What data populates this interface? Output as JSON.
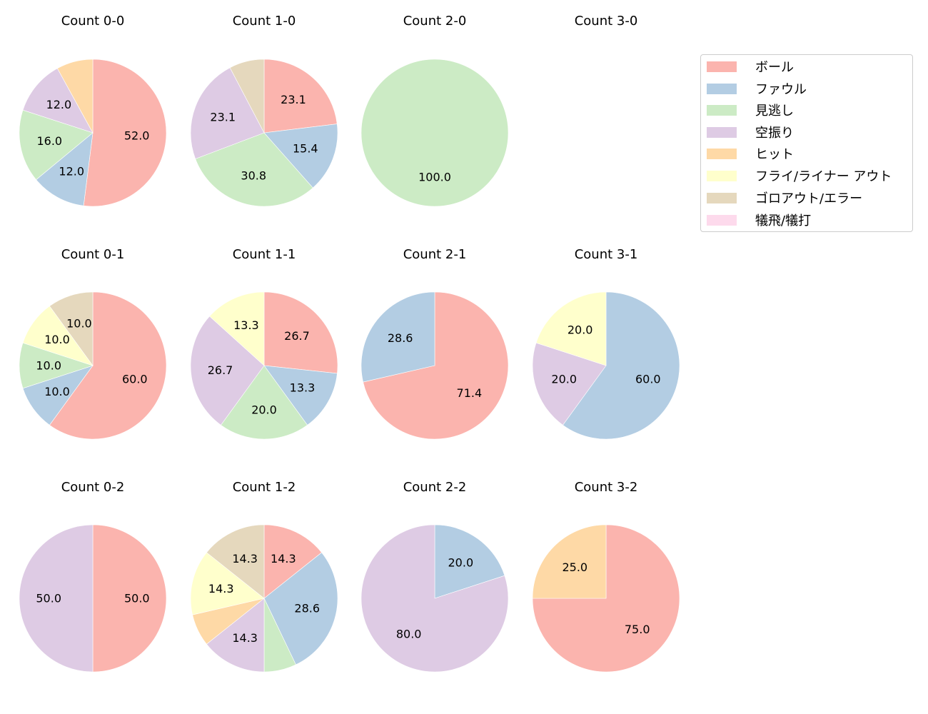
{
  "chart_data": {
    "type": "pie",
    "categories": [
      "ボール",
      "ファウル",
      "見逃し",
      "空振り",
      "ヒット",
      "フライ/ライナー アウト",
      "ゴロアウト/エラー",
      "犠飛/犠打"
    ],
    "colors": [
      "#fbb4ae",
      "#b3cde3",
      "#ccebc5",
      "#decbe4",
      "#fed9a6",
      "#ffffcc",
      "#e5d8bd",
      "#fddaec"
    ],
    "legend_position": "upper right",
    "charts": [
      {
        "title": "Count 0-0",
        "row": 0,
        "col": 0,
        "values": [
          52.0,
          12.0,
          16.0,
          12.0,
          8.0,
          0,
          0,
          0
        ],
        "labels": [
          "52.0",
          "12.0",
          "16.0",
          "12.0",
          "",
          "",
          "",
          ""
        ]
      },
      {
        "title": "Count 1-0",
        "row": 0,
        "col": 1,
        "values": [
          23.1,
          15.4,
          30.8,
          23.1,
          0,
          0,
          7.7,
          0
        ],
        "labels": [
          "23.1",
          "15.4",
          "30.8",
          "23.1",
          "",
          "",
          "",
          ""
        ]
      },
      {
        "title": "Count 2-0",
        "row": 0,
        "col": 2,
        "values": [
          0,
          0,
          100.0,
          0,
          0,
          0,
          0,
          0
        ],
        "labels": [
          "",
          "",
          "100.0",
          "",
          "",
          "",
          "",
          ""
        ]
      },
      {
        "title": "Count 3-0",
        "row": 0,
        "col": 3,
        "values": [
          0,
          0,
          0,
          0,
          0,
          0,
          0,
          0
        ],
        "labels": [
          "",
          "",
          "",
          "",
          "",
          "",
          "",
          ""
        ]
      },
      {
        "title": "Count 0-1",
        "row": 1,
        "col": 0,
        "values": [
          60.0,
          10.0,
          10.0,
          0,
          0,
          10.0,
          10.0,
          0
        ],
        "labels": [
          "60.0",
          "10.0",
          "10.0",
          "",
          "",
          "10.0",
          "10.0",
          ""
        ]
      },
      {
        "title": "Count 1-1",
        "row": 1,
        "col": 1,
        "values": [
          26.7,
          13.3,
          20.0,
          26.7,
          0,
          13.3,
          0,
          0
        ],
        "labels": [
          "26.7",
          "13.3",
          "20.0",
          "26.7",
          "",
          "13.3",
          "",
          ""
        ]
      },
      {
        "title": "Count 2-1",
        "row": 1,
        "col": 2,
        "values": [
          71.4,
          28.6,
          0,
          0,
          0,
          0,
          0,
          0
        ],
        "labels": [
          "71.4",
          "28.6",
          "",
          "",
          "",
          "",
          "",
          ""
        ]
      },
      {
        "title": "Count 3-1",
        "row": 1,
        "col": 3,
        "values": [
          0,
          60.0,
          0,
          20.0,
          0,
          20.0,
          0,
          0
        ],
        "labels": [
          "",
          "60.0",
          "",
          "20.0",
          "",
          "20.0",
          "",
          ""
        ]
      },
      {
        "title": "Count 0-2",
        "row": 2,
        "col": 0,
        "values": [
          50.0,
          0,
          0,
          50.0,
          0,
          0,
          0,
          0
        ],
        "labels": [
          "50.0",
          "",
          "",
          "50.0",
          "",
          "",
          "",
          ""
        ]
      },
      {
        "title": "Count 1-2",
        "row": 2,
        "col": 1,
        "values": [
          14.3,
          28.6,
          7.1,
          14.3,
          7.1,
          14.3,
          14.3,
          0
        ],
        "labels": [
          "14.3",
          "28.6",
          "",
          "14.3",
          "",
          "14.3",
          "14.3",
          ""
        ]
      },
      {
        "title": "Count 2-2",
        "row": 2,
        "col": 2,
        "values": [
          0,
          20.0,
          0,
          80.0,
          0,
          0,
          0,
          0
        ],
        "labels": [
          "",
          "20.0",
          "",
          "80.0",
          "",
          "",
          "",
          ""
        ]
      },
      {
        "title": "Count 3-2",
        "row": 2,
        "col": 3,
        "values": [
          75.0,
          0,
          0,
          0,
          25.0,
          0,
          0,
          0
        ],
        "labels": [
          "75.0",
          "",
          "",
          "",
          "25.0",
          "",
          "",
          ""
        ]
      }
    ]
  },
  "legend": {
    "items": [
      {
        "label": "ボール",
        "color": "#fbb4ae"
      },
      {
        "label": "ファウル",
        "color": "#b3cde3"
      },
      {
        "label": "見逃し",
        "color": "#ccebc5"
      },
      {
        "label": "空振り",
        "color": "#decbe4"
      },
      {
        "label": "ヒット",
        "color": "#fed9a6"
      },
      {
        "label": "フライ/ライナー アウト",
        "color": "#ffffcc"
      },
      {
        "label": "ゴロアウト/エラー",
        "color": "#e5d8bd"
      },
      {
        "label": "犠飛/犠打",
        "color": "#fddaec"
      }
    ]
  }
}
